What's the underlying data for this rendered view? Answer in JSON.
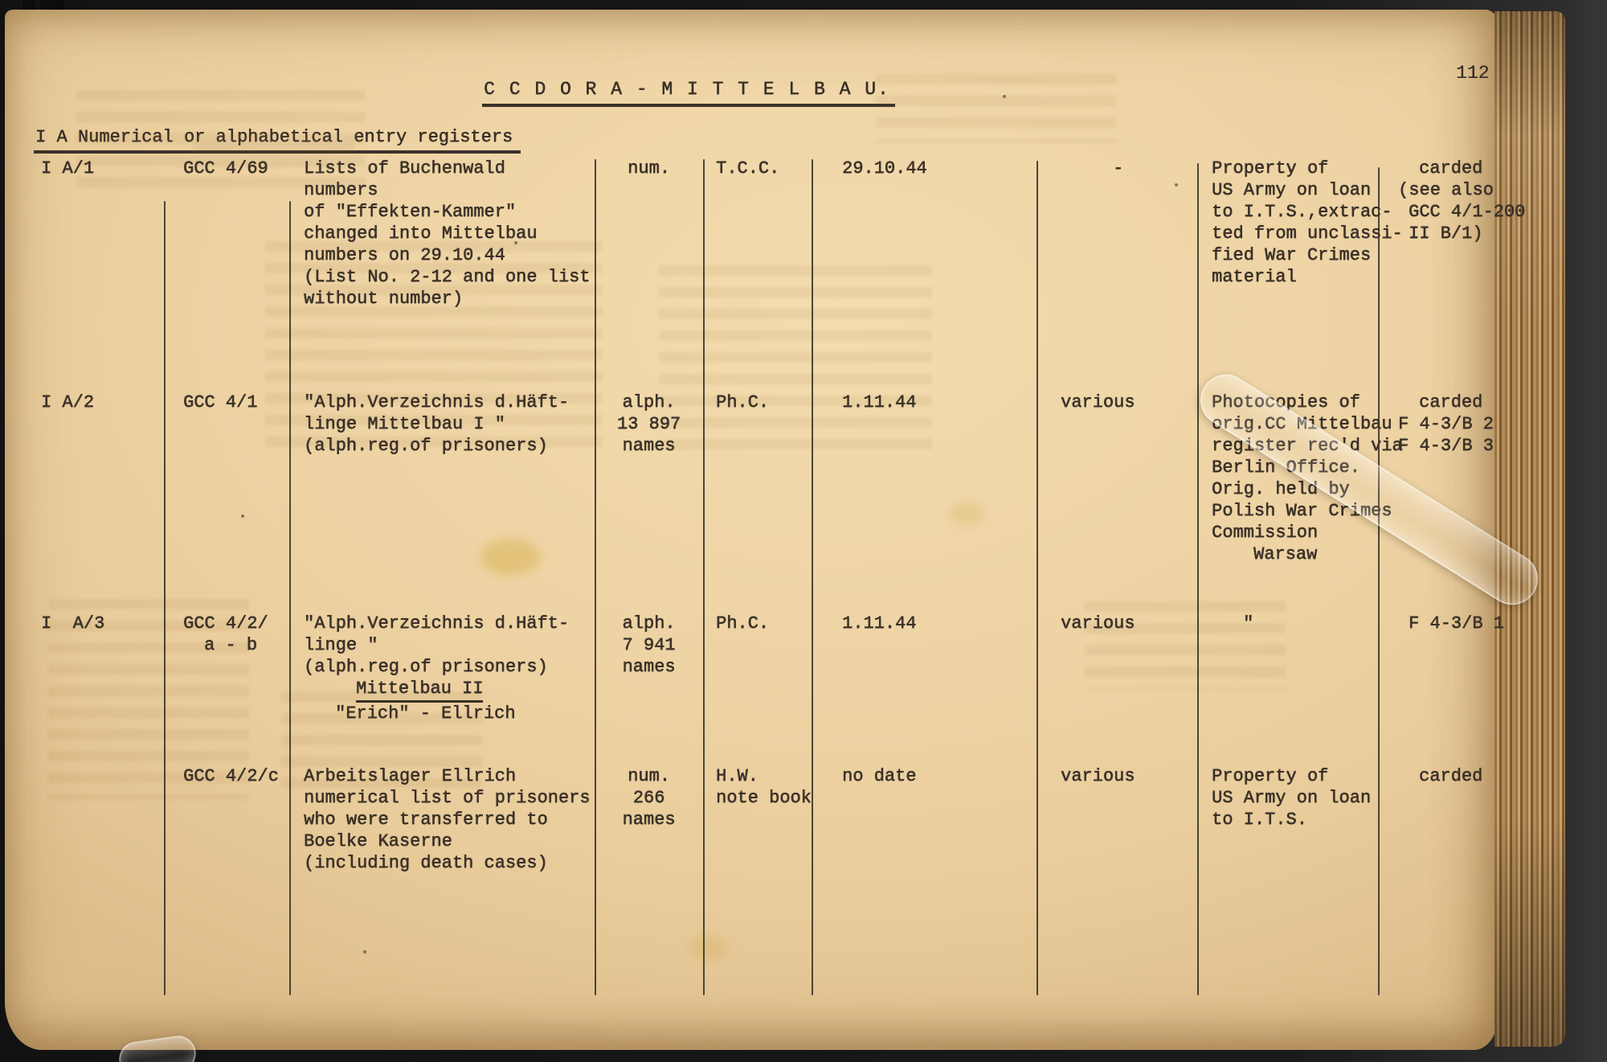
{
  "page": {
    "number": "112"
  },
  "title": "C C  D O R A - M I T T E L B A U.",
  "section_heading": "I A Numerical or alphabetical entry registers",
  "colors": {
    "paper": "#eed3a4",
    "ink": "#3a3128",
    "table_line": "#3a342c"
  },
  "table": {
    "rows": [
      {
        "cells": [
          [
            "I A/1"
          ],
          [
            "GCC 4/69"
          ],
          [
            "Lists of Buchenwald",
            "numbers",
            "of \"Effekten-Kammer\"",
            "changed into Mittelbau",
            "numbers on 29.10.44",
            "(List No. 2-12 and one list",
            "without number)"
          ],
          [
            "num."
          ],
          [
            "T.C.C."
          ],
          [
            "29.10.44"
          ],
          [
            {
              "t": "-",
              "in": 5
            }
          ],
          [
            "Property of",
            "US Army on loan",
            "to I.T.S.,extrac-",
            "ted from unclassi-",
            "fied War Crimes",
            "material"
          ],
          [
            {
              "t": "carded",
              "in": 2
            },
            "(see also",
            {
              "t": "GCC 4/1-200",
              "in": 1
            },
            {
              "t": "II B/1)",
              "in": 1
            }
          ]
        ]
      },
      {
        "cells": [
          [
            "I A/2"
          ],
          [
            "GCC 4/1"
          ],
          [
            "\"Alph.Verzeichnis d.Häft-",
            "linge Mittelbau I \"",
            "(alph.reg.of prisoners)"
          ],
          [
            "alph.",
            "13 897",
            "names"
          ],
          [
            "Ph.C."
          ],
          [
            "1.11.44"
          ],
          [
            "various"
          ],
          [
            "Photocopies of",
            "orig.CC Mittelbau",
            "register rec'd via",
            "Berlin Office.",
            "Orig. held by",
            "Polish War Crimes",
            "Commission",
            {
              "t": "Warsaw",
              "in": 4
            }
          ],
          [
            {
              "t": "carded",
              "in": 2
            },
            "F 4-3/B 2",
            "F 4-3/B 3"
          ]
        ]
      },
      {
        "cells": [
          [
            "I  A/3"
          ],
          [
            "GCC 4/2/",
            {
              "t": "a - b",
              "in": 2
            }
          ],
          [
            "\"Alph.Verzeichnis d.Häft-",
            "linge \"",
            "(alph.reg.of prisoners)",
            {
              "t": "Mittelbau II",
              "u": 1,
              "in": 5
            },
            {
              "t": "\"Erich\" - Ellrich",
              "in": 3
            }
          ],
          [
            "alph.",
            "7 941",
            "names"
          ],
          [
            "Ph.C."
          ],
          [
            "1.11.44"
          ],
          [
            "various"
          ],
          [
            {
              "t": "\"",
              "in": 3
            }
          ],
          [
            {
              "t": "F 4-3/B 1",
              "in": 1
            }
          ]
        ]
      },
      {
        "cells": [
          [],
          [
            "GCC 4/2/c"
          ],
          [
            "Arbeitslager Ellrich",
            "numerical list of prisoners",
            "who were transferred to",
            "Boelke Kaserne",
            "(including death cases)"
          ],
          [
            "num.",
            "266",
            "names"
          ],
          [
            "H.W.",
            "note book"
          ],
          [
            "no date"
          ],
          [
            "various"
          ],
          [
            "Property of",
            "US Army on loan",
            "to I.T.S."
          ],
          [
            {
              "t": "carded",
              "in": 2
            }
          ]
        ]
      }
    ]
  }
}
